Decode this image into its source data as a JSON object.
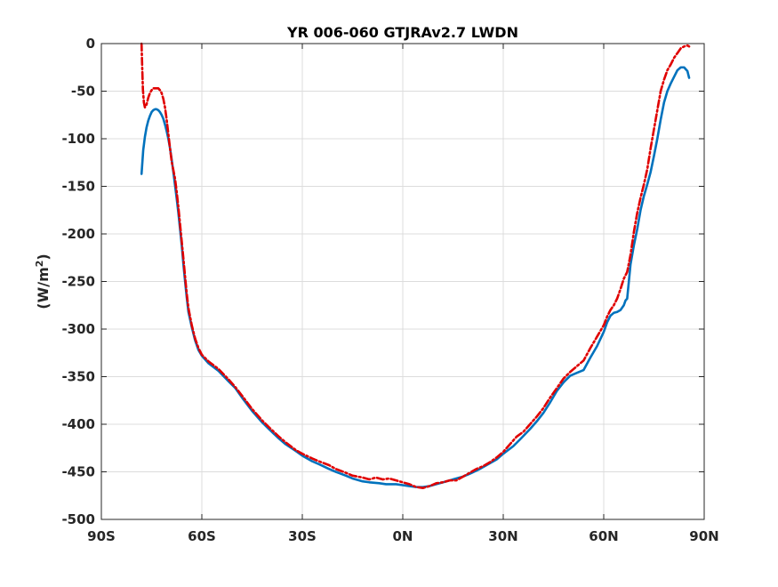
{
  "chart_data": {
    "type": "line",
    "title": "YR 006-060 GTJRAv2.7 LWDN",
    "xlabel": "",
    "ylabel": "(W/m",
    "ylabel_superscript": "2",
    "ylabel_suffix": ")",
    "xlim": [
      -90,
      90
    ],
    "ylim": [
      -500,
      0
    ],
    "xticks": [
      -90,
      -60,
      -30,
      0,
      30,
      60,
      90
    ],
    "xtick_labels": [
      "90S",
      "60S",
      "30S",
      "0N",
      "30N",
      "60N",
      "90N"
    ],
    "yticks": [
      0,
      -50,
      -100,
      -150,
      -200,
      -250,
      -300,
      -350,
      -400,
      -450,
      -500
    ],
    "ytick_labels": [
      "0",
      "-50",
      "-100",
      "-150",
      "-200",
      "-250",
      "-300",
      "-350",
      "-400",
      "-450",
      "-500"
    ],
    "grid": true,
    "legend": "none",
    "series": [
      {
        "color": "#0072BD",
        "style": "solid",
        "points": [
          [
            -78,
            -137
          ],
          [
            -77.5,
            -112
          ],
          [
            -77,
            -98
          ],
          [
            -76.5,
            -88
          ],
          [
            -76,
            -81
          ],
          [
            -75.5,
            -76
          ],
          [
            -75,
            -72
          ],
          [
            -74.5,
            -70
          ],
          [
            -74,
            -69
          ],
          [
            -73.5,
            -69
          ],
          [
            -73,
            -70
          ],
          [
            -72.5,
            -72
          ],
          [
            -72,
            -75
          ],
          [
            -71.5,
            -79
          ],
          [
            -71,
            -85
          ],
          [
            -70.5,
            -92
          ],
          [
            -70,
            -100
          ],
          [
            -69.5,
            -110
          ],
          [
            -69,
            -122
          ],
          [
            -68.5,
            -135
          ],
          [
            -68,
            -149
          ],
          [
            -67.5,
            -163
          ],
          [
            -67,
            -178
          ],
          [
            -66.5,
            -195
          ],
          [
            -66,
            -212
          ],
          [
            -65.5,
            -232
          ],
          [
            -65,
            -250
          ],
          [
            -64.5,
            -267
          ],
          [
            -64,
            -282
          ],
          [
            -63,
            -298
          ],
          [
            -62,
            -312
          ],
          [
            -61,
            -322
          ],
          [
            -60,
            -328
          ],
          [
            -58,
            -336
          ],
          [
            -55,
            -344
          ],
          [
            -52,
            -355
          ],
          [
            -50,
            -362
          ],
          [
            -48,
            -372
          ],
          [
            -45,
            -386
          ],
          [
            -42,
            -398
          ],
          [
            -40,
            -405
          ],
          [
            -37,
            -415
          ],
          [
            -35,
            -421
          ],
          [
            -32,
            -428
          ],
          [
            -30,
            -433
          ],
          [
            -27,
            -439
          ],
          [
            -25,
            -442
          ],
          [
            -22,
            -447
          ],
          [
            -20,
            -450
          ],
          [
            -17,
            -454
          ],
          [
            -15,
            -457
          ],
          [
            -12,
            -460
          ],
          [
            -10,
            -461
          ],
          [
            -7,
            -462
          ],
          [
            -5,
            -463
          ],
          [
            -2,
            -463
          ],
          [
            0,
            -464
          ],
          [
            2,
            -465
          ],
          [
            4,
            -466
          ],
          [
            6,
            -466
          ],
          [
            8,
            -465
          ],
          [
            10,
            -463
          ],
          [
            13,
            -460
          ],
          [
            15,
            -458
          ],
          [
            18,
            -455
          ],
          [
            20,
            -452
          ],
          [
            23,
            -447
          ],
          [
            25,
            -443
          ],
          [
            28,
            -437
          ],
          [
            30,
            -431
          ],
          [
            33,
            -423
          ],
          [
            35,
            -416
          ],
          [
            38,
            -405
          ],
          [
            40,
            -397
          ],
          [
            42,
            -388
          ],
          [
            44,
            -377
          ],
          [
            46,
            -365
          ],
          [
            48,
            -356
          ],
          [
            50,
            -349
          ],
          [
            52,
            -346
          ],
          [
            54,
            -343
          ],
          [
            56,
            -330
          ],
          [
            58,
            -318
          ],
          [
            60,
            -303
          ],
          [
            61,
            -293
          ],
          [
            62,
            -286
          ],
          [
            63,
            -283
          ],
          [
            64,
            -282
          ],
          [
            65,
            -280
          ],
          [
            66,
            -275
          ],
          [
            66.5,
            -270
          ],
          [
            67,
            -268
          ],
          [
            67.5,
            -250
          ],
          [
            68,
            -232
          ],
          [
            69,
            -212
          ],
          [
            70,
            -195
          ],
          [
            71,
            -175
          ],
          [
            72,
            -160
          ],
          [
            73,
            -148
          ],
          [
            74,
            -135
          ],
          [
            75,
            -118
          ],
          [
            76,
            -100
          ],
          [
            77,
            -80
          ],
          [
            78,
            -62
          ],
          [
            79,
            -50
          ],
          [
            80,
            -42
          ],
          [
            81,
            -35
          ],
          [
            82,
            -28
          ],
          [
            83,
            -25
          ],
          [
            84,
            -25
          ],
          [
            85,
            -29
          ],
          [
            85.5,
            -36
          ]
        ]
      },
      {
        "color": "#E00000",
        "style": "dashdot",
        "points": [
          [
            -78,
            0
          ],
          [
            -77.8,
            -25
          ],
          [
            -77.6,
            -48
          ],
          [
            -77.3,
            -62
          ],
          [
            -77,
            -67
          ],
          [
            -76.5,
            -64
          ],
          [
            -76,
            -57
          ],
          [
            -75.5,
            -52
          ],
          [
            -75,
            -49
          ],
          [
            -74.5,
            -47
          ],
          [
            -74,
            -47
          ],
          [
            -73,
            -47
          ],
          [
            -72.5,
            -49
          ],
          [
            -72,
            -52
          ],
          [
            -71.5,
            -58
          ],
          [
            -71,
            -67
          ],
          [
            -70.5,
            -80
          ],
          [
            -70,
            -95
          ],
          [
            -69.5,
            -110
          ],
          [
            -69,
            -124
          ],
          [
            -68.5,
            -133
          ],
          [
            -68,
            -142
          ],
          [
            -67.5,
            -156
          ],
          [
            -67,
            -172
          ],
          [
            -66.5,
            -190
          ],
          [
            -66,
            -208
          ],
          [
            -65.5,
            -226
          ],
          [
            -65,
            -245
          ],
          [
            -64.5,
            -263
          ],
          [
            -64,
            -278
          ],
          [
            -63,
            -296
          ],
          [
            -62,
            -310
          ],
          [
            -61,
            -320
          ],
          [
            -60,
            -327
          ],
          [
            -58,
            -334
          ],
          [
            -55,
            -342
          ],
          [
            -52,
            -353
          ],
          [
            -50,
            -361
          ],
          [
            -48,
            -370
          ],
          [
            -45,
            -384
          ],
          [
            -42,
            -396
          ],
          [
            -40,
            -403
          ],
          [
            -37,
            -413
          ],
          [
            -35,
            -419
          ],
          [
            -32,
            -427
          ],
          [
            -30,
            -431
          ],
          [
            -27,
            -436
          ],
          [
            -25,
            -439
          ],
          [
            -22,
            -443
          ],
          [
            -20,
            -447
          ],
          [
            -17,
            -451
          ],
          [
            -15,
            -454
          ],
          [
            -12,
            -456
          ],
          [
            -10,
            -458
          ],
          [
            -8,
            -456
          ],
          [
            -6,
            -458
          ],
          [
            -4,
            -457
          ],
          [
            -2,
            -459
          ],
          [
            0,
            -461
          ],
          [
            2,
            -463
          ],
          [
            4,
            -466
          ],
          [
            6,
            -467
          ],
          [
            8,
            -465
          ],
          [
            10,
            -462
          ],
          [
            12,
            -461
          ],
          [
            14,
            -459
          ],
          [
            16,
            -459
          ],
          [
            18,
            -455
          ],
          [
            20,
            -451
          ],
          [
            22,
            -447
          ],
          [
            24,
            -444
          ],
          [
            26,
            -440
          ],
          [
            28,
            -435
          ],
          [
            30,
            -429
          ],
          [
            32,
            -421
          ],
          [
            34,
            -413
          ],
          [
            36,
            -408
          ],
          [
            38,
            -400
          ],
          [
            40,
            -392
          ],
          [
            42,
            -383
          ],
          [
            44,
            -372
          ],
          [
            46,
            -362
          ],
          [
            48,
            -352
          ],
          [
            50,
            -345
          ],
          [
            52,
            -339
          ],
          [
            54,
            -333
          ],
          [
            56,
            -320
          ],
          [
            58,
            -308
          ],
          [
            60,
            -296
          ],
          [
            61,
            -287
          ],
          [
            62,
            -280
          ],
          [
            63,
            -275
          ],
          [
            64,
            -268
          ],
          [
            65,
            -258
          ],
          [
            66,
            -247
          ],
          [
            67,
            -240
          ],
          [
            68,
            -222
          ],
          [
            69,
            -198
          ],
          [
            70,
            -178
          ],
          [
            71,
            -162
          ],
          [
            72,
            -148
          ],
          [
            73,
            -132
          ],
          [
            74,
            -110
          ],
          [
            75,
            -90
          ],
          [
            76,
            -70
          ],
          [
            77,
            -50
          ],
          [
            78,
            -38
          ],
          [
            79,
            -28
          ],
          [
            80,
            -22
          ],
          [
            81,
            -15
          ],
          [
            82,
            -10
          ],
          [
            83,
            -5
          ],
          [
            84,
            -3
          ],
          [
            85,
            -2
          ],
          [
            85.5,
            -3
          ]
        ]
      }
    ]
  }
}
